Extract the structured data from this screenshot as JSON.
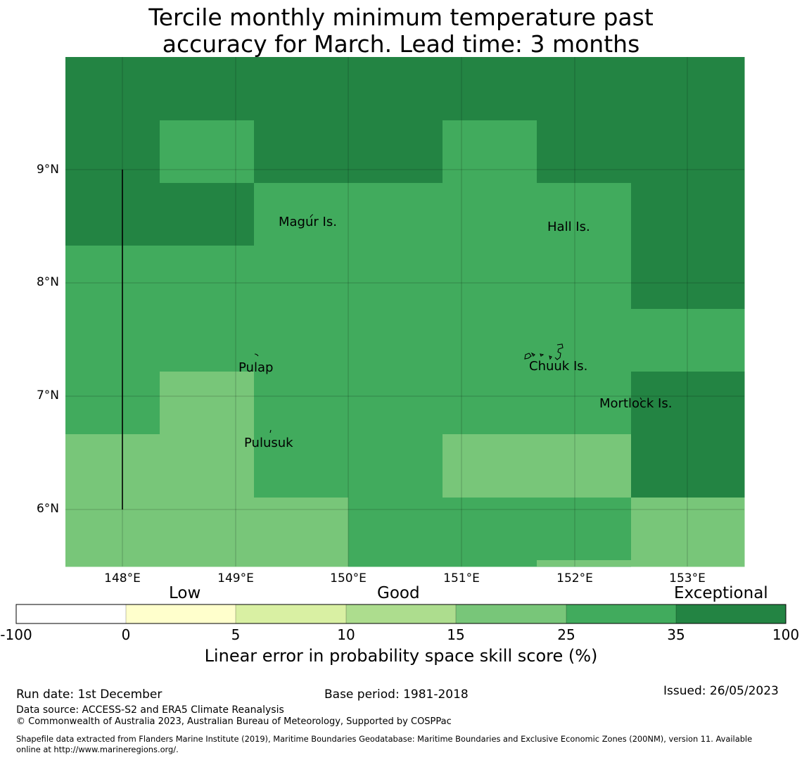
{
  "title_line1": "Tercile monthly minimum temperature past",
  "title_line2": "accuracy for March. Lead time: 3 months",
  "colors": {
    "exceptional": "#238443",
    "c25_35": "#41ab5d",
    "c15_25": "#78c679",
    "c10_15": "#addd8e",
    "c5_10": "#d9f0a3",
    "c0_5": "#ffffcc",
    "neg": "#ffffff"
  },
  "map": {
    "grid_palette": [
      "#238443",
      "#41ab5d",
      "#78c679"
    ],
    "grid": [
      "0000000",
      "0100100",
      "0011110",
      "1111110",
      "1111111",
      "1211110",
      "2211220",
      "2221112"
    ],
    "islands": [
      "Magur Is.",
      "Hall Is.",
      "Pulap",
      "Chuuk Is.",
      "Mortlock Is.",
      "Pulusuk"
    ],
    "lat_ticks": [
      "9°N",
      "8°N",
      "7°N",
      "6°N"
    ],
    "lon_ticks": [
      "148°E",
      "149°E",
      "150°E",
      "151°E",
      "152°E",
      "153°E"
    ]
  },
  "colorbar": {
    "categories": [
      "Low",
      "Good",
      "Exceptional"
    ],
    "ticks": [
      "-100",
      "0",
      "5",
      "10",
      "15",
      "25",
      "35",
      "100"
    ],
    "label": "Linear error in probability space skill score (%)"
  },
  "footer": {
    "run_date": "Run date: 1st December",
    "base_period": "Base period: 1981-2018",
    "issued": "Issued: 26/05/2023",
    "data_source": "Data source: ACCESS-S2 and ERA5 Climate Reanalysis",
    "copyright": "© Commonwealth of Australia 2023, Australian Bureau of Meteorology, Supported by COSPPac",
    "shapefile_line1": "Shapefile data extracted from Flanders Marine Institute (2019), Maritime Boundaries Geodatabase: Maritime Boundaries and Exclusive Economic Zones (200NM), version 11. Available",
    "shapefile_line2": "online at http://www.marineregions.org/."
  }
}
